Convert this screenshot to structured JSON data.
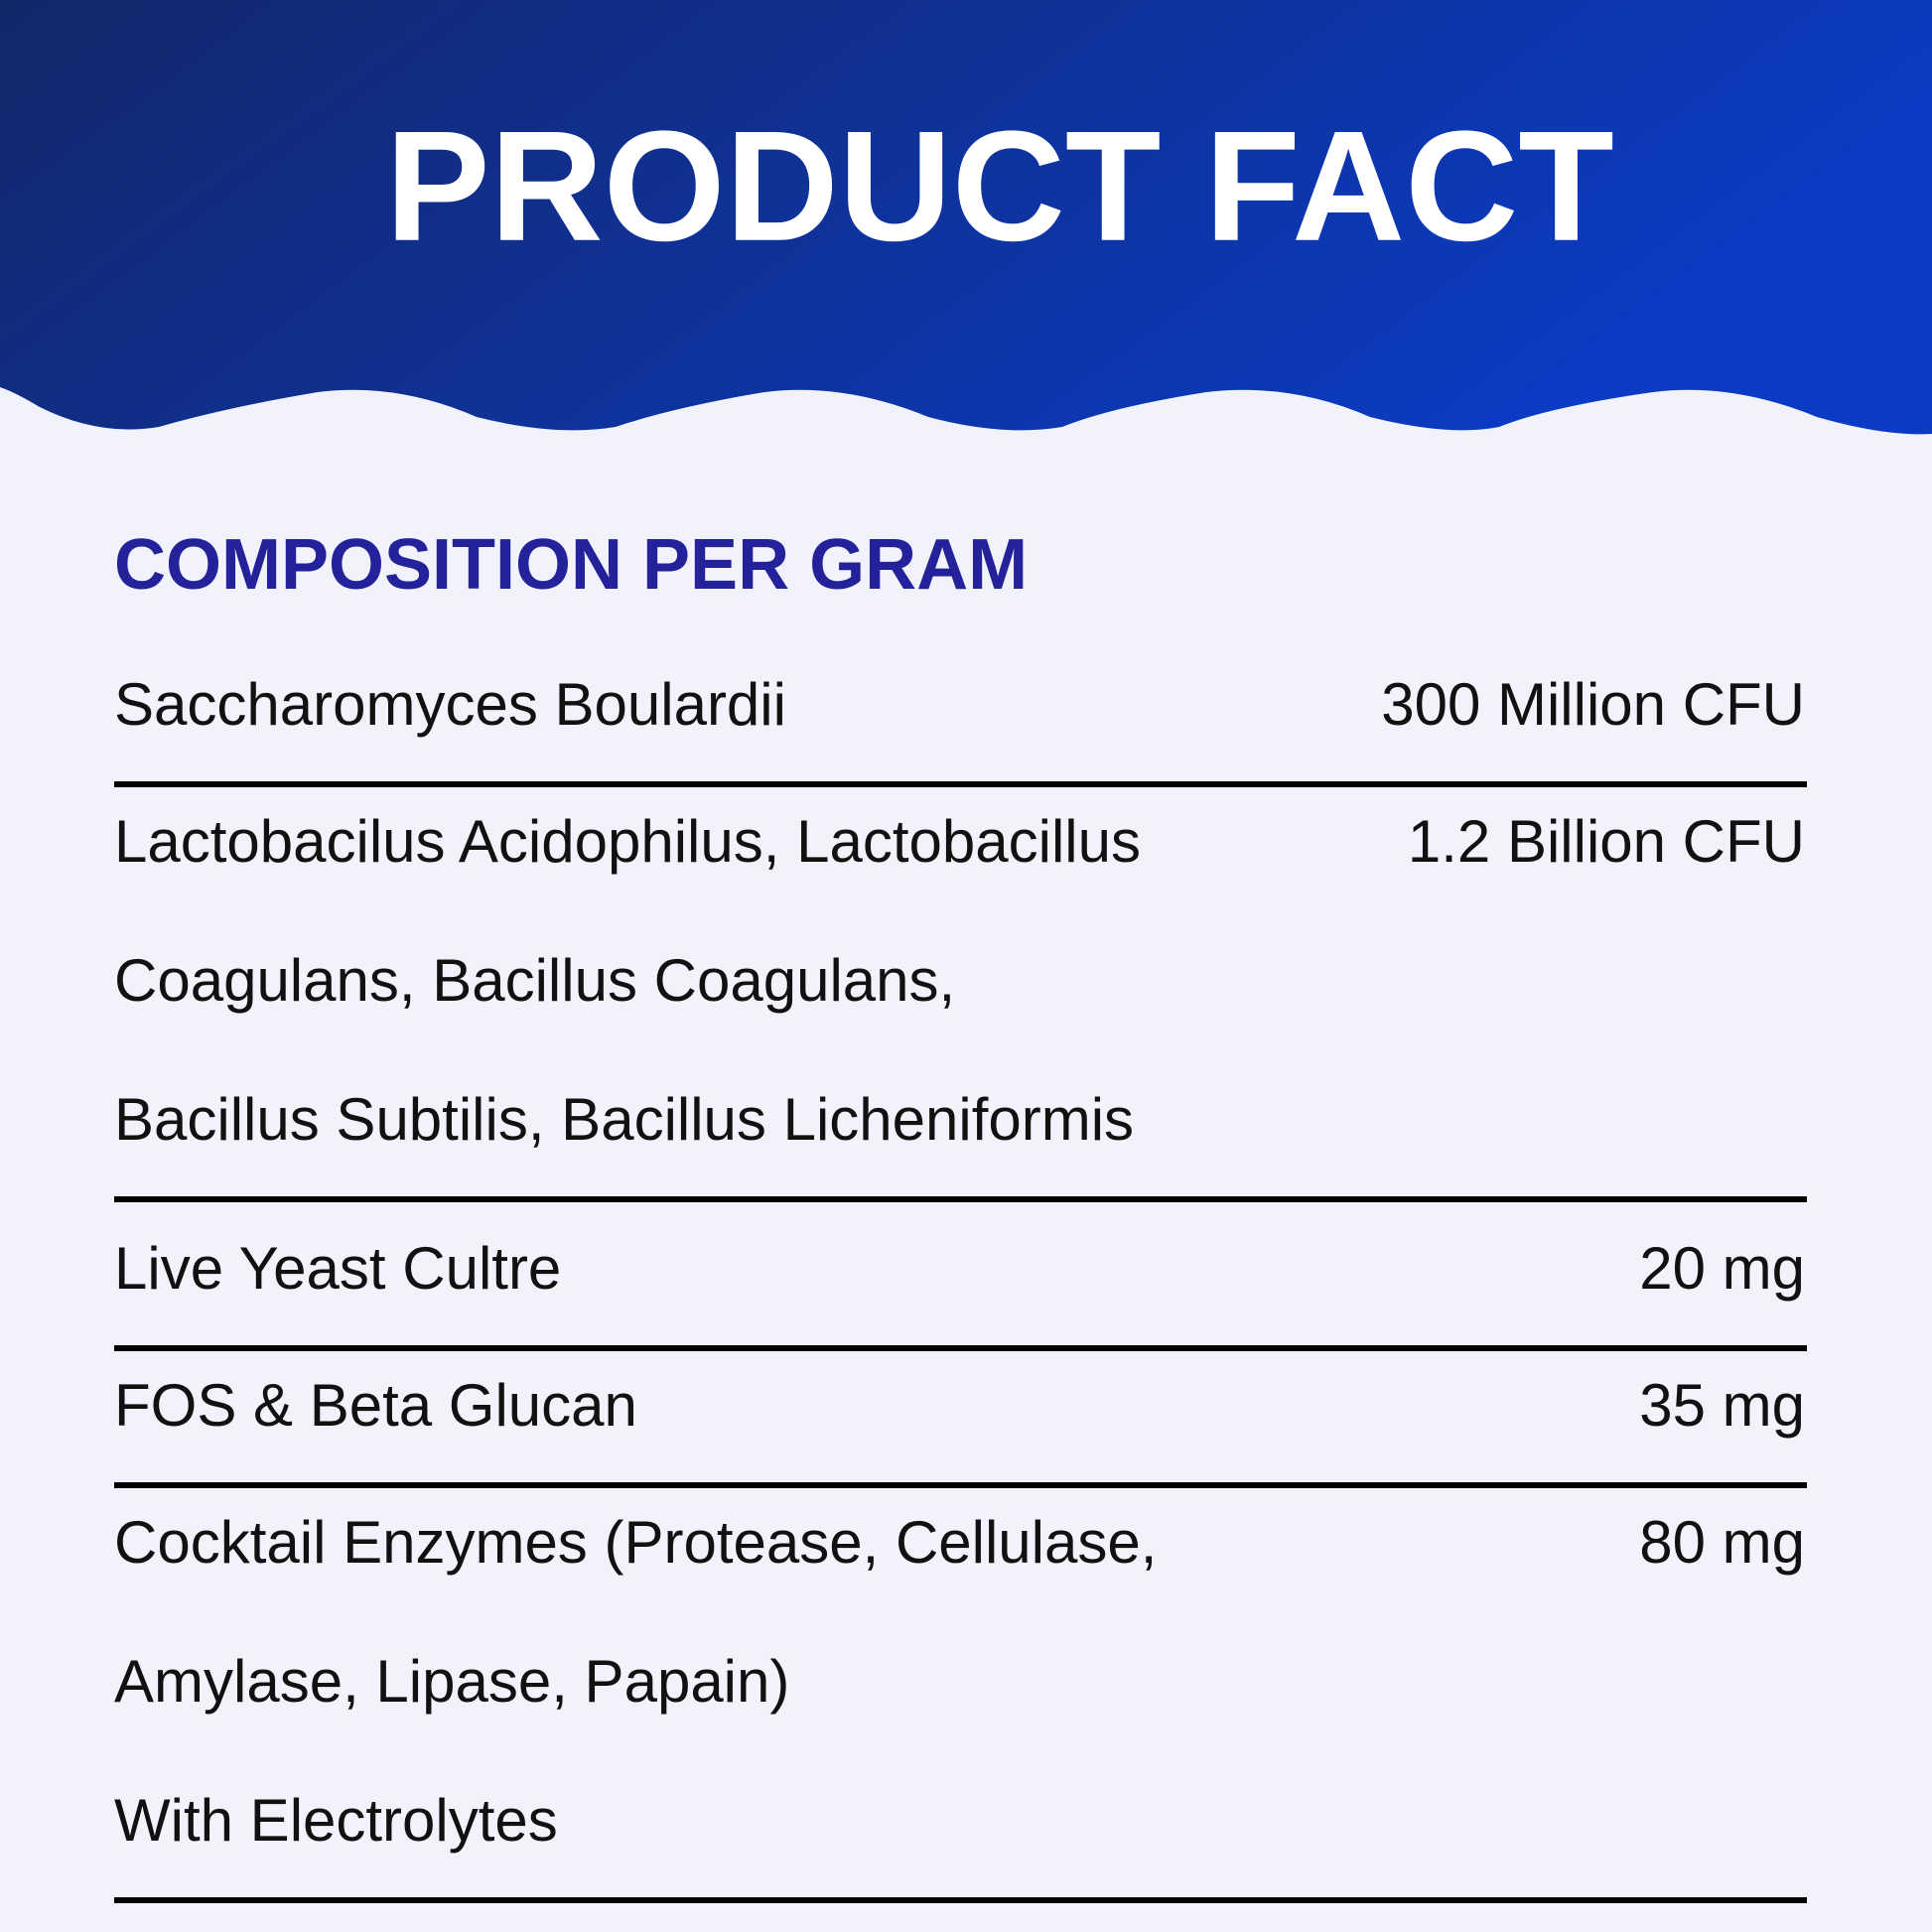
{
  "header": {
    "title": "PRODUCT FACT"
  },
  "section_title": "COMPOSITION PER GRAM",
  "rows": [
    {
      "ingredient": [
        "Saccharomyces Boulardii"
      ],
      "amount": "300 Million CFU"
    },
    {
      "ingredient": [
        "Lactobacilus Acidophilus, Lactobacillus",
        "Coagulans, Bacillus Coagulans,",
        "Bacillus Subtilis, Bacillus Licheniformis"
      ],
      "amount": "1.2 Billion CFU"
    },
    {
      "ingredient": [
        "Live Yeast Cultre"
      ],
      "amount": "20 mg"
    },
    {
      "ingredient": [
        "FOS & Beta Glucan"
      ],
      "amount": "35 mg"
    },
    {
      "ingredient": [
        "Cocktail Enzymes (Protease, Cellulase,",
        "Amylase, Lipase, Papain)",
        "With Electrolytes"
      ],
      "amount": "80 mg"
    }
  ]
}
